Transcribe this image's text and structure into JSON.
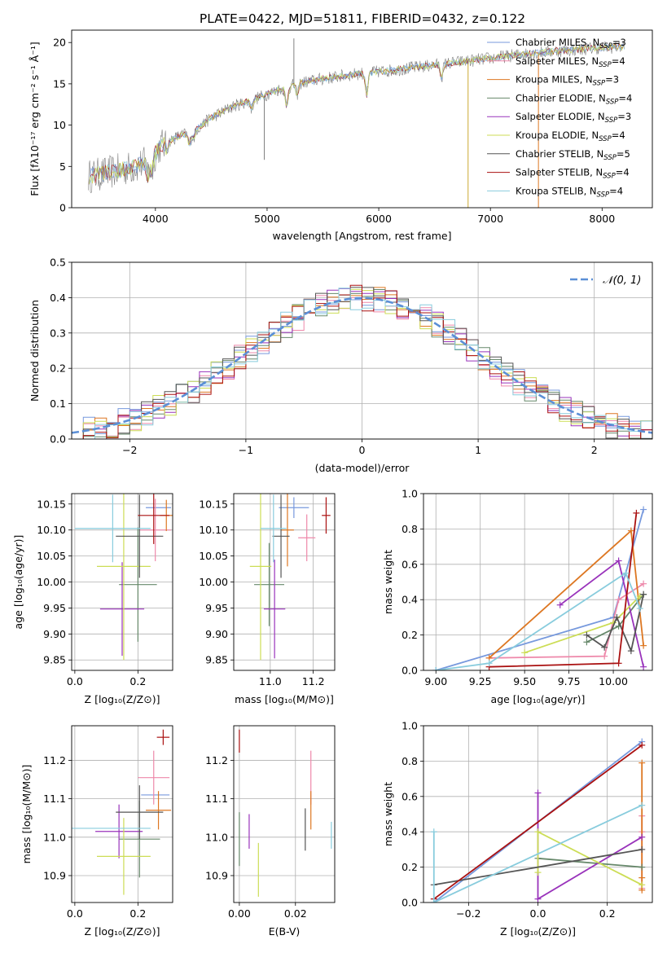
{
  "colors": {
    "series": [
      "#7799dd",
      "#ee88aa",
      "#dd7722",
      "#66886a",
      "#9933bb",
      "#ccdd55",
      "#555555",
      "#aa1111",
      "#88ccdd"
    ],
    "gaussian": "#5b8fd6",
    "grid": "#b0b0b0"
  },
  "legend_labels": {
    "series": [
      {
        "base": "Chabrier MILES, N",
        "sub": "SSP",
        "tail": "=3"
      },
      {
        "base": "Salpeter MILES, N",
        "sub": "SSP",
        "tail": "=4"
      },
      {
        "base": "Kroupa MILES, N",
        "sub": "SSP",
        "tail": "=3"
      },
      {
        "base": "Chabrier ELODIE, N",
        "sub": "SSP",
        "tail": "=4"
      },
      {
        "base": "Salpeter ELODIE, N",
        "sub": "SSP",
        "tail": "=3"
      },
      {
        "base": "Kroupa ELODIE, N",
        "sub": "SSP",
        "tail": "=4"
      },
      {
        "base": "Chabrier STELIB, N",
        "sub": "SSP",
        "tail": "=5"
      },
      {
        "base": "Salpeter STELIB, N",
        "sub": "SSP",
        "tail": "=4"
      },
      {
        "base": "Kroupa STELIB, N",
        "sub": "SSP",
        "tail": "=4"
      }
    ],
    "gaussian": "𝒩(0, 1)"
  },
  "chart_data": [
    {
      "id": "spectrum",
      "type": "line",
      "title": "PLATE=0422, MJD=51811, FIBERID=0432, z=0.122",
      "xlabel": "wavelength [Angstrom, rest frame]",
      "ylabel": "Flux [fλ10⁻¹⁷ erg cm⁻² s⁻¹ Å⁻¹]",
      "xlim": [
        3250,
        8450
      ],
      "ylim": [
        0,
        21.5
      ],
      "xticks": [
        4000,
        5000,
        6000,
        7000,
        8000
      ],
      "yticks": [
        0,
        5,
        10,
        15,
        20
      ],
      "continuum": [
        [
          3400,
          3.8
        ],
        [
          3600,
          4.3
        ],
        [
          3800,
          4.9
        ],
        [
          3950,
          5.6
        ],
        [
          4050,
          7.6
        ],
        [
          4200,
          8.6
        ],
        [
          4350,
          9.3
        ],
        [
          4500,
          10.9
        ],
        [
          4700,
          12.3
        ],
        [
          4900,
          13.2
        ],
        [
          5100,
          14.3
        ],
        [
          5300,
          15.1
        ],
        [
          5500,
          15.6
        ],
        [
          5800,
          16.2
        ],
        [
          6100,
          16.6
        ],
        [
          6400,
          17.1
        ],
        [
          6700,
          17.6
        ],
        [
          7000,
          18.1
        ],
        [
          7300,
          18.6
        ],
        [
          7600,
          19.0
        ],
        [
          7900,
          19.3
        ],
        [
          8200,
          19.5
        ]
      ],
      "absorption_lines": [
        [
          3934,
          -1.6
        ],
        [
          3969,
          -1.4
        ],
        [
          4102,
          -0.9
        ],
        [
          4304,
          -1.3
        ],
        [
          4341,
          -0.8
        ],
        [
          4861,
          -1.0
        ],
        [
          5175,
          -2.2
        ],
        [
          5270,
          -1.2
        ],
        [
          5893,
          -2.5
        ],
        [
          6563,
          -1.5
        ]
      ],
      "observed_spikes": [
        [
          4975,
          5.8
        ],
        [
          5240,
          20.5
        ],
        [
          6800,
          0
        ],
        [
          7430,
          0
        ],
        [
          3930,
          3.0
        ]
      ],
      "grid": false
    },
    {
      "id": "residuals",
      "type": "histogram",
      "xlabel": "(data-model)/error",
      "ylabel": "Normed distribution",
      "xlim": [
        -2.5,
        2.5
      ],
      "ylim": [
        0,
        0.5
      ],
      "xticks": [
        -2,
        -1,
        0,
        1,
        2
      ],
      "yticks": [
        0.0,
        0.1,
        0.2,
        0.3,
        0.4,
        0.5
      ],
      "bin_width": 0.1,
      "reference": "normal pdf, mean 0, sigma 1",
      "legend_position": "upper right",
      "grid": true
    },
    {
      "id": "age-vs-Z",
      "type": "errorbar",
      "xlabel": "Z [log₁₀(Z/Z⊙)]",
      "ylabel": "age  [log₁₀(age/yr)]",
      "xlim": [
        -0.01,
        0.31
      ],
      "ylim": [
        9.83,
        10.17
      ],
      "xticks": [
        0.0,
        0.2
      ],
      "yticks": [
        9.85,
        9.9,
        9.95,
        10.0,
        10.05,
        10.1,
        10.15
      ],
      "points": [
        {
          "x": 0.265,
          "xerr": 0.04,
          "y": 10.143,
          "yerr": 0.0
        },
        {
          "x": 0.255,
          "xerr": 0.05,
          "y": 10.1,
          "yerr": 0.06
        },
        {
          "x": 0.29,
          "xerr": 0.02,
          "y": 10.128,
          "yerr": 0.03
        },
        {
          "x": 0.2,
          "xerr": 0.06,
          "y": 9.995,
          "yerr": 0.11
        },
        {
          "x": 0.15,
          "xerr": 0.07,
          "y": 9.948,
          "yerr": 0.09
        },
        {
          "x": 0.155,
          "xerr": 0.085,
          "y": 10.03,
          "yerr": 0.18
        },
        {
          "x": 0.205,
          "xerr": 0.075,
          "y": 10.088,
          "yerr": 0.08
        },
        {
          "x": 0.25,
          "xerr": 0.05,
          "y": 10.128,
          "yerr": 0.055
        },
        {
          "x": 0.12,
          "xerr": 0.12,
          "y": 10.103,
          "yerr": 0.065
        }
      ],
      "grid": true
    },
    {
      "id": "age-vs-mass",
      "type": "errorbar",
      "xlabel": "mass [log₁₀(M/M⊙)]",
      "ylabel": "",
      "xlim": [
        10.83,
        11.3
      ],
      "ylim": [
        9.83,
        10.17
      ],
      "xticks": [
        11.0,
        11.2
      ],
      "yticks": [
        9.85,
        9.9,
        9.95,
        10.0,
        10.05,
        10.1,
        10.15
      ],
      "points": [
        {
          "x": 11.11,
          "xerr": 0.07,
          "y": 10.143,
          "yerr": 0.02
        },
        {
          "x": 11.17,
          "xerr": 0.04,
          "y": 10.085,
          "yerr": 0.045
        },
        {
          "x": 11.08,
          "xerr": 0.03,
          "y": 10.1,
          "yerr": 0.07
        },
        {
          "x": 10.995,
          "xerr": 0.07,
          "y": 9.995,
          "yerr": 0.08
        },
        {
          "x": 11.02,
          "xerr": 0.05,
          "y": 9.948,
          "yerr": 0.095
        },
        {
          "x": 10.955,
          "xerr": 0.05,
          "y": 10.03,
          "yerr": 0.18
        },
        {
          "x": 11.05,
          "xerr": 0.04,
          "y": 10.088,
          "yerr": 0.08
        },
        {
          "x": 11.26,
          "xerr": 0.02,
          "y": 10.128,
          "yerr": 0.035
        },
        {
          "x": 11.015,
          "xerr": 0.06,
          "y": 10.103,
          "yerr": 0.065
        }
      ],
      "grid": true
    },
    {
      "id": "weight-vs-age",
      "type": "line",
      "xlabel": "age  [log₁₀(age/yr)]",
      "ylabel": "mass weight",
      "xlim": [
        8.93,
        10.22
      ],
      "ylim": [
        0,
        1.0
      ],
      "xticks": [
        9.0,
        9.25,
        9.5,
        9.75,
        10.0
      ],
      "yticks": [
        0.0,
        0.2,
        0.4,
        0.6,
        0.8,
        1.0
      ],
      "series": [
        {
          "x": [
            9.0,
            10.0,
            10.17
          ],
          "y": [
            0.0,
            0.3,
            0.91
          ]
        },
        {
          "x": [
            9.3,
            9.95,
            10.03,
            10.17
          ],
          "y": [
            0.07,
            0.08,
            0.4,
            0.49
          ]
        },
        {
          "x": [
            9.3,
            10.1,
            10.17
          ],
          "y": [
            0.07,
            0.79,
            0.14
          ]
        },
        {
          "x": [
            9.85,
            10.03,
            10.17
          ],
          "y": [
            0.16,
            0.25,
            0.43
          ]
        },
        {
          "x": [
            9.7,
            10.03,
            10.17
          ],
          "y": [
            0.37,
            0.62,
            0.02
          ]
        },
        {
          "x": [
            9.5,
            10.0,
            10.15
          ],
          "y": [
            0.1,
            0.27,
            0.42
          ]
        },
        {
          "x": [
            9.85,
            9.95,
            10.02,
            10.1,
            10.17
          ],
          "y": [
            0.2,
            0.13,
            0.3,
            0.11,
            0.43
          ]
        },
        {
          "x": [
            9.3,
            10.03,
            10.13
          ],
          "y": [
            0.02,
            0.04,
            0.89
          ]
        },
        {
          "x": [
            9.0,
            9.3,
            10.07,
            10.15
          ],
          "y": [
            0.0,
            0.04,
            0.55,
            0.35
          ]
        }
      ],
      "grid": true
    },
    {
      "id": "mass-vs-Z",
      "type": "errorbar",
      "xlabel": "Z [log₁₀(Z/Z⊙)]",
      "ylabel": "mass [log₁₀(M/M⊙)]",
      "xlim": [
        -0.01,
        0.31
      ],
      "ylim": [
        10.83,
        11.29
      ],
      "xticks": [
        0.0,
        0.2
      ],
      "yticks": [
        10.9,
        11.0,
        11.1,
        11.2
      ],
      "points": [
        {
          "x": 0.255,
          "xerr": 0.045,
          "y": 11.11,
          "yerr": 0.0
        },
        {
          "x": 0.25,
          "xerr": 0.05,
          "y": 11.155,
          "yerr": 0.07
        },
        {
          "x": 0.265,
          "xerr": 0.04,
          "y": 11.07,
          "yerr": 0.05
        },
        {
          "x": 0.205,
          "xerr": 0.065,
          "y": 10.995,
          "yerr": 0.1
        },
        {
          "x": 0.14,
          "xerr": 0.075,
          "y": 11.015,
          "yerr": 0.07
        },
        {
          "x": 0.155,
          "xerr": 0.085,
          "y": 10.95,
          "yerr": 0.1
        },
        {
          "x": 0.205,
          "xerr": 0.075,
          "y": 11.065,
          "yerr": 0.07
        },
        {
          "x": 0.28,
          "xerr": 0.02,
          "y": 11.26,
          "yerr": 0.02
        },
        {
          "x": 0.115,
          "xerr": 0.125,
          "y": 11.023,
          "yerr": 0.0
        }
      ],
      "grid": true
    },
    {
      "id": "mass-vs-ebv",
      "type": "errorbar",
      "xlabel": "E(B-V)",
      "ylabel": "",
      "xlim": [
        -0.002,
        0.034
      ],
      "ylim": [
        10.83,
        11.29
      ],
      "xticks": [
        0.0,
        0.02
      ],
      "yticks": [
        10.9,
        11.0,
        11.1,
        11.2
      ],
      "points": [
        {
          "x": 0.0,
          "xerr": 0.0,
          "y": 11.11,
          "yerr": 0.0
        },
        {
          "x": 0.0255,
          "xerr": 0.0,
          "y": 11.155,
          "yerr": 0.07
        },
        {
          "x": 0.0255,
          "xerr": 0.0,
          "y": 11.07,
          "yerr": 0.05
        },
        {
          "x": 0.0,
          "xerr": 0.0,
          "y": 10.995,
          "yerr": 0.07
        },
        {
          "x": 0.0035,
          "xerr": 0.0,
          "y": 11.015,
          "yerr": 0.045
        },
        {
          "x": 0.0068,
          "xerr": 0.0,
          "y": 10.915,
          "yerr": 0.07
        },
        {
          "x": 0.0235,
          "xerr": 0.0,
          "y": 11.02,
          "yerr": 0.055
        },
        {
          "x": 0.0,
          "xerr": 0.0,
          "y": 11.25,
          "yerr": 0.03
        },
        {
          "x": 0.0328,
          "xerr": 0.0,
          "y": 11.005,
          "yerr": 0.035
        }
      ],
      "grid": true
    },
    {
      "id": "weight-vs-Z",
      "type": "line",
      "xlabel": "Z [log₁₀(Z/Z⊙)]",
      "ylabel": "mass weight",
      "xlim": [
        -0.33,
        0.33
      ],
      "ylim": [
        0,
        1.0
      ],
      "xticks": [
        -0.2,
        0.0,
        0.2
      ],
      "yticks": [
        0.0,
        0.2,
        0.4,
        0.6,
        0.8,
        1.0
      ],
      "series": [
        {
          "x": [
            -0.3,
            0.3
          ],
          "y": [
            0.0,
            0.91
          ]
        },
        {
          "x": [
            0.3,
            0.3,
            0.3
          ],
          "y": [
            0.08,
            0.4,
            0.49
          ]
        },
        {
          "x": [
            0.3,
            0.3,
            0.3
          ],
          "y": [
            0.07,
            0.79,
            0.14
          ]
        },
        {
          "x": [
            0.0,
            0.3
          ],
          "y": [
            0.25,
            0.2
          ]
        },
        {
          "x": [
            0.0,
            0.0,
            0.3
          ],
          "y": [
            0.62,
            0.02,
            0.37
          ]
        },
        {
          "x": [
            0.0,
            0.0,
            0.3
          ],
          "y": [
            0.17,
            0.4,
            0.1
          ]
        },
        {
          "x": [
            -0.3,
            0.3
          ],
          "y": [
            0.1,
            0.3
          ]
        },
        {
          "x": [
            -0.3,
            0.3
          ],
          "y": [
            0.02,
            0.89
          ]
        },
        {
          "x": [
            -0.3,
            -0.3,
            0.3
          ],
          "y": [
            0.4,
            0.0,
            0.55
          ]
        }
      ],
      "grid": true
    }
  ]
}
